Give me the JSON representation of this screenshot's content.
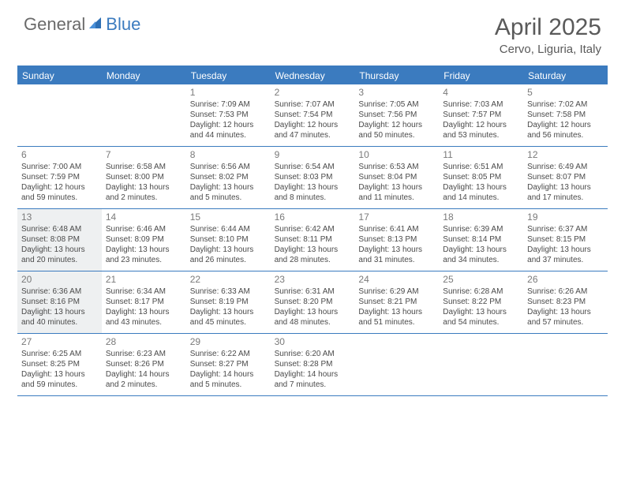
{
  "logo": {
    "part1": "General",
    "part2": "Blue"
  },
  "title": "April 2025",
  "location": "Cervo, Liguria, Italy",
  "colors": {
    "accent": "#3b7bbf",
    "shaded": "#eef0f1",
    "text": "#4a4a4a",
    "heading": "#5a5a5a"
  },
  "days_of_week": [
    "Sunday",
    "Monday",
    "Tuesday",
    "Wednesday",
    "Thursday",
    "Friday",
    "Saturday"
  ],
  "weeks": [
    [
      {
        "blank": true
      },
      {
        "blank": true
      },
      {
        "day": "1",
        "sunrise": "Sunrise: 7:09 AM",
        "sunset": "Sunset: 7:53 PM",
        "daylight": "Daylight: 12 hours and 44 minutes."
      },
      {
        "day": "2",
        "sunrise": "Sunrise: 7:07 AM",
        "sunset": "Sunset: 7:54 PM",
        "daylight": "Daylight: 12 hours and 47 minutes."
      },
      {
        "day": "3",
        "sunrise": "Sunrise: 7:05 AM",
        "sunset": "Sunset: 7:56 PM",
        "daylight": "Daylight: 12 hours and 50 minutes."
      },
      {
        "day": "4",
        "sunrise": "Sunrise: 7:03 AM",
        "sunset": "Sunset: 7:57 PM",
        "daylight": "Daylight: 12 hours and 53 minutes."
      },
      {
        "day": "5",
        "sunrise": "Sunrise: 7:02 AM",
        "sunset": "Sunset: 7:58 PM",
        "daylight": "Daylight: 12 hours and 56 minutes."
      }
    ],
    [
      {
        "day": "6",
        "sunrise": "Sunrise: 7:00 AM",
        "sunset": "Sunset: 7:59 PM",
        "daylight": "Daylight: 12 hours and 59 minutes."
      },
      {
        "day": "7",
        "sunrise": "Sunrise: 6:58 AM",
        "sunset": "Sunset: 8:00 PM",
        "daylight": "Daylight: 13 hours and 2 minutes."
      },
      {
        "day": "8",
        "sunrise": "Sunrise: 6:56 AM",
        "sunset": "Sunset: 8:02 PM",
        "daylight": "Daylight: 13 hours and 5 minutes."
      },
      {
        "day": "9",
        "sunrise": "Sunrise: 6:54 AM",
        "sunset": "Sunset: 8:03 PM",
        "daylight": "Daylight: 13 hours and 8 minutes."
      },
      {
        "day": "10",
        "sunrise": "Sunrise: 6:53 AM",
        "sunset": "Sunset: 8:04 PM",
        "daylight": "Daylight: 13 hours and 11 minutes."
      },
      {
        "day": "11",
        "sunrise": "Sunrise: 6:51 AM",
        "sunset": "Sunset: 8:05 PM",
        "daylight": "Daylight: 13 hours and 14 minutes."
      },
      {
        "day": "12",
        "sunrise": "Sunrise: 6:49 AM",
        "sunset": "Sunset: 8:07 PM",
        "daylight": "Daylight: 13 hours and 17 minutes."
      }
    ],
    [
      {
        "day": "13",
        "shaded": true,
        "sunrise": "Sunrise: 6:48 AM",
        "sunset": "Sunset: 8:08 PM",
        "daylight": "Daylight: 13 hours and 20 minutes."
      },
      {
        "day": "14",
        "sunrise": "Sunrise: 6:46 AM",
        "sunset": "Sunset: 8:09 PM",
        "daylight": "Daylight: 13 hours and 23 minutes."
      },
      {
        "day": "15",
        "sunrise": "Sunrise: 6:44 AM",
        "sunset": "Sunset: 8:10 PM",
        "daylight": "Daylight: 13 hours and 26 minutes."
      },
      {
        "day": "16",
        "sunrise": "Sunrise: 6:42 AM",
        "sunset": "Sunset: 8:11 PM",
        "daylight": "Daylight: 13 hours and 28 minutes."
      },
      {
        "day": "17",
        "sunrise": "Sunrise: 6:41 AM",
        "sunset": "Sunset: 8:13 PM",
        "daylight": "Daylight: 13 hours and 31 minutes."
      },
      {
        "day": "18",
        "sunrise": "Sunrise: 6:39 AM",
        "sunset": "Sunset: 8:14 PM",
        "daylight": "Daylight: 13 hours and 34 minutes."
      },
      {
        "day": "19",
        "sunrise": "Sunrise: 6:37 AM",
        "sunset": "Sunset: 8:15 PM",
        "daylight": "Daylight: 13 hours and 37 minutes."
      }
    ],
    [
      {
        "day": "20",
        "shaded": true,
        "sunrise": "Sunrise: 6:36 AM",
        "sunset": "Sunset: 8:16 PM",
        "daylight": "Daylight: 13 hours and 40 minutes."
      },
      {
        "day": "21",
        "sunrise": "Sunrise: 6:34 AM",
        "sunset": "Sunset: 8:17 PM",
        "daylight": "Daylight: 13 hours and 43 minutes."
      },
      {
        "day": "22",
        "sunrise": "Sunrise: 6:33 AM",
        "sunset": "Sunset: 8:19 PM",
        "daylight": "Daylight: 13 hours and 45 minutes."
      },
      {
        "day": "23",
        "sunrise": "Sunrise: 6:31 AM",
        "sunset": "Sunset: 8:20 PM",
        "daylight": "Daylight: 13 hours and 48 minutes."
      },
      {
        "day": "24",
        "sunrise": "Sunrise: 6:29 AM",
        "sunset": "Sunset: 8:21 PM",
        "daylight": "Daylight: 13 hours and 51 minutes."
      },
      {
        "day": "25",
        "sunrise": "Sunrise: 6:28 AM",
        "sunset": "Sunset: 8:22 PM",
        "daylight": "Daylight: 13 hours and 54 minutes."
      },
      {
        "day": "26",
        "sunrise": "Sunrise: 6:26 AM",
        "sunset": "Sunset: 8:23 PM",
        "daylight": "Daylight: 13 hours and 57 minutes."
      }
    ],
    [
      {
        "day": "27",
        "sunrise": "Sunrise: 6:25 AM",
        "sunset": "Sunset: 8:25 PM",
        "daylight": "Daylight: 13 hours and 59 minutes."
      },
      {
        "day": "28",
        "sunrise": "Sunrise: 6:23 AM",
        "sunset": "Sunset: 8:26 PM",
        "daylight": "Daylight: 14 hours and 2 minutes."
      },
      {
        "day": "29",
        "sunrise": "Sunrise: 6:22 AM",
        "sunset": "Sunset: 8:27 PM",
        "daylight": "Daylight: 14 hours and 5 minutes."
      },
      {
        "day": "30",
        "sunrise": "Sunrise: 6:20 AM",
        "sunset": "Sunset: 8:28 PM",
        "daylight": "Daylight: 14 hours and 7 minutes."
      },
      {
        "blank": true
      },
      {
        "blank": true
      },
      {
        "blank": true
      }
    ]
  ]
}
